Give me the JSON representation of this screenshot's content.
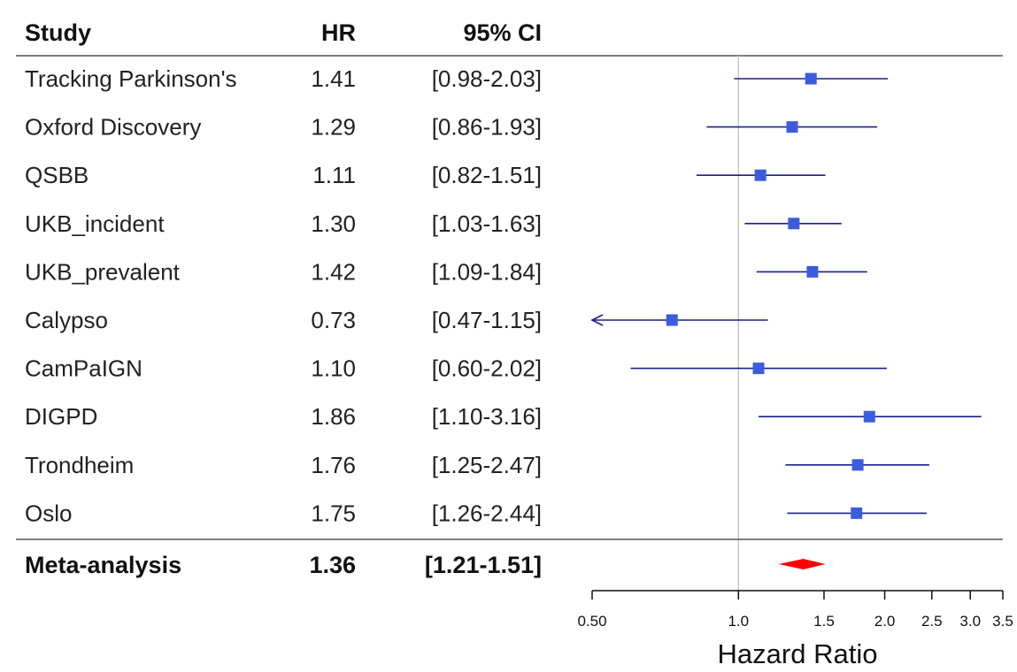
{
  "columns": {
    "study": "Study",
    "hr": "HR",
    "ci": "95% CI"
  },
  "chart_data": {
    "type": "forest",
    "xlabel": "Hazard Ratio",
    "scale": "log",
    "xlim": [
      0.5,
      3.5
    ],
    "reference_line": 1.0,
    "ticks": [
      0.5,
      1.0,
      1.5,
      2.0,
      2.5,
      3.0,
      3.5
    ],
    "tick_labels": [
      "0.50",
      "1.0",
      "1.5",
      "2.0",
      "2.5",
      "3.0",
      "3.5"
    ],
    "colors": {
      "point": "#3b5ddd",
      "ci_line": "#1a1f8c",
      "summary": "#ff0000",
      "reference": "#c8c8c8"
    },
    "studies": [
      {
        "name": "Tracking Parkinson's",
        "hr": 1.41,
        "lower": 0.98,
        "upper": 2.03,
        "hr_text": "1.41",
        "ci_text": "[0.98-2.03]"
      },
      {
        "name": "Oxford Discovery",
        "hr": 1.29,
        "lower": 0.86,
        "upper": 1.93,
        "hr_text": "1.29",
        "ci_text": "[0.86-1.93]"
      },
      {
        "name": "QSBB",
        "hr": 1.11,
        "lower": 0.82,
        "upper": 1.51,
        "hr_text": "1.11",
        "ci_text": "[0.82-1.51]"
      },
      {
        "name": "UKB_incident",
        "hr": 1.3,
        "lower": 1.03,
        "upper": 1.63,
        "hr_text": "1.30",
        "ci_text": "[1.03-1.63]"
      },
      {
        "name": "UKB_prevalent",
        "hr": 1.42,
        "lower": 1.09,
        "upper": 1.84,
        "hr_text": "1.42",
        "ci_text": "[1.09-1.84]"
      },
      {
        "name": "Calypso",
        "hr": 0.73,
        "lower": 0.47,
        "upper": 1.15,
        "hr_text": "0.73",
        "ci_text": "[0.47-1.15]"
      },
      {
        "name": "CamPaIGN",
        "hr": 1.1,
        "lower": 0.6,
        "upper": 2.02,
        "hr_text": "1.10",
        "ci_text": "[0.60-2.02]"
      },
      {
        "name": "DIGPD",
        "hr": 1.86,
        "lower": 1.1,
        "upper": 3.16,
        "hr_text": "1.86",
        "ci_text": "[1.10-3.16]"
      },
      {
        "name": "Trondheim",
        "hr": 1.76,
        "lower": 1.25,
        "upper": 2.47,
        "hr_text": "1.76",
        "ci_text": "[1.25-2.47]"
      },
      {
        "name": "Oslo",
        "hr": 1.75,
        "lower": 1.26,
        "upper": 2.44,
        "hr_text": "1.75",
        "ci_text": "[1.26-2.44]"
      }
    ],
    "summary": {
      "name": "Meta-analysis",
      "hr": 1.36,
      "lower": 1.21,
      "upper": 1.51,
      "hr_text": "1.36",
      "ci_text": "[1.21-1.51]"
    }
  }
}
